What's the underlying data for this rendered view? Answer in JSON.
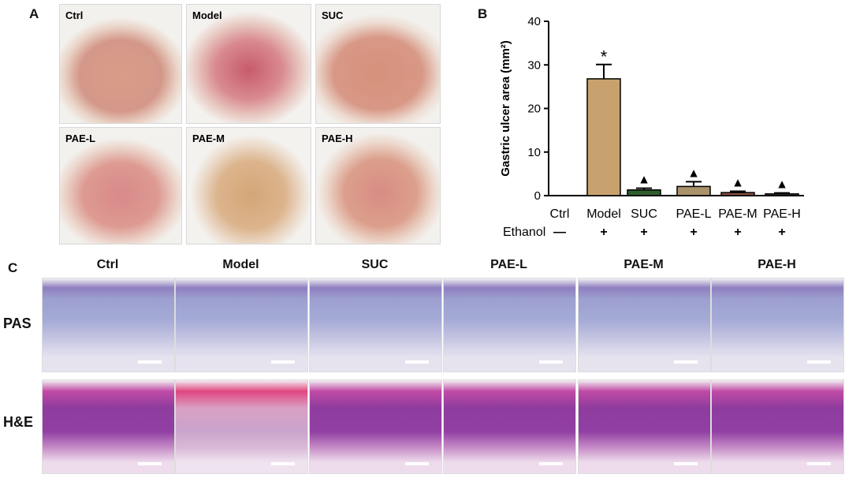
{
  "panels": {
    "a": "A",
    "b": "B",
    "c": "C"
  },
  "panel_a": {
    "labels": [
      "Ctrl",
      "Model",
      "SUC",
      "PAE-L",
      "PAE-M",
      "PAE-H"
    ]
  },
  "chart_data": {
    "type": "bar",
    "categories": [
      "Ctrl",
      "Model",
      "SUC",
      "PAE-L",
      "PAE-M",
      "PAE-H"
    ],
    "values": [
      0,
      26.8,
      1.3,
      2.1,
      0.7,
      0.4
    ],
    "errors": [
      0,
      3.3,
      0.4,
      1.1,
      0.3,
      0.2
    ],
    "colors": [
      "#c8a26e",
      "#c8a26e",
      "#2f5d2f",
      "#a9936b",
      "#8a4f3f",
      "#5a4a3a"
    ],
    "ylabel": "Gastric ulcer area (mm²)",
    "ylim": [
      0,
      40
    ],
    "yticks": [
      0,
      10,
      20,
      30,
      40
    ],
    "annotations": [
      "",
      "*",
      "▲",
      "▲",
      "▲",
      "▲"
    ],
    "ethanol_label": "Ethanol",
    "ethanol_marks": [
      "—",
      "+",
      "+",
      "+",
      "+",
      "+"
    ]
  },
  "panel_c": {
    "columns": [
      "Ctrl",
      "Model",
      "SUC",
      "PAE-L",
      "PAE-M",
      "PAE-H"
    ],
    "rows": [
      "PAS",
      "H&E"
    ]
  }
}
